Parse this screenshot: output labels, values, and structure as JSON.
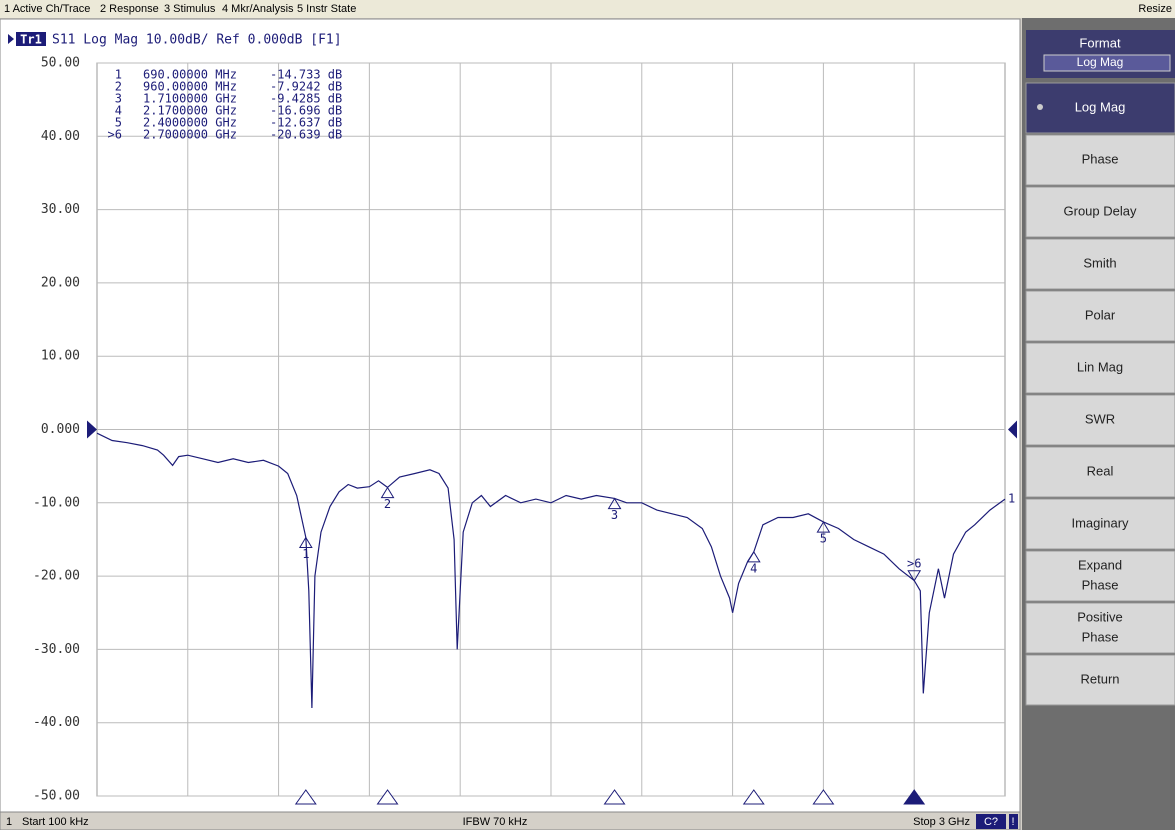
{
  "menu": [
    "1 Active Ch/Trace",
    "2 Response",
    "3 Stimulus",
    "4 Mkr/Analysis",
    "5 Instr State"
  ],
  "menu_right": "Resize",
  "trace_header": {
    "trace": "Tr1",
    "text": "S11 Log Mag 10.00dB/ Ref 0.000dB [F1]"
  },
  "chart_data": {
    "type": "line",
    "xlim": [
      0.0001,
      3
    ],
    "xgrid": [
      0.3,
      0.6,
      0.9,
      1.2,
      1.5,
      1.8,
      2.1,
      2.4,
      2.7
    ],
    "ylim": [
      -50,
      50
    ],
    "yticks": [
      {
        "value": 50,
        "label": "50.00"
      },
      {
        "value": 40,
        "label": "40.00"
      },
      {
        "value": 30,
        "label": "30.00"
      },
      {
        "value": 20,
        "label": "20.00"
      },
      {
        "value": 10,
        "label": "10.00"
      },
      {
        "value": 0,
        "label": "0.000"
      },
      {
        "value": -10,
        "label": "-10.00"
      },
      {
        "value": -20,
        "label": "-20.00"
      },
      {
        "value": -30,
        "label": "-30.00"
      },
      {
        "value": -40,
        "label": "-40.00"
      },
      {
        "value": -50,
        "label": "-50.00"
      }
    ],
    "grid": true,
    "ref_level": 0,
    "series": [
      {
        "color": "#1c1c78",
        "x": [
          0.0001,
          0.05,
          0.1,
          0.15,
          0.2,
          0.22,
          0.25,
          0.27,
          0.3,
          0.35,
          0.4,
          0.45,
          0.5,
          0.55,
          0.6,
          0.63,
          0.66,
          0.69,
          0.7,
          0.71,
          0.72,
          0.74,
          0.77,
          0.8,
          0.83,
          0.86,
          0.9,
          0.93,
          0.96,
          1.0,
          1.05,
          1.1,
          1.13,
          1.16,
          1.18,
          1.19,
          1.21,
          1.24,
          1.27,
          1.3,
          1.35,
          1.4,
          1.45,
          1.5,
          1.55,
          1.6,
          1.65,
          1.71,
          1.75,
          1.8,
          1.85,
          1.9,
          1.95,
          2.0,
          2.03,
          2.06,
          2.09,
          2.1,
          2.12,
          2.15,
          2.17,
          2.2,
          2.25,
          2.3,
          2.35,
          2.4,
          2.45,
          2.5,
          2.55,
          2.6,
          2.65,
          2.7,
          2.72,
          2.73,
          2.75,
          2.78,
          2.8,
          2.83,
          2.87,
          2.9,
          2.95,
          3.0
        ],
        "values": [
          -0.5,
          -1.5,
          -1.8,
          -2.2,
          -2.8,
          -3.5,
          -4.9,
          -3.7,
          -3.5,
          -4,
          -4.5,
          -4,
          -4.5,
          -4.2,
          -5,
          -6,
          -9,
          -14.7,
          -22,
          -38,
          -20,
          -14,
          -10.5,
          -8.5,
          -7.5,
          -8,
          -7.8,
          -7,
          -7.9,
          -6.5,
          -6,
          -5.5,
          -6,
          -8,
          -15,
          -30,
          -14,
          -10,
          -9,
          -10.5,
          -9,
          -10,
          -9.5,
          -10,
          -9,
          -9.5,
          -9,
          -9.4,
          -10,
          -10,
          -11,
          -11.5,
          -12,
          -13.5,
          -16,
          -20,
          -23,
          -25,
          -21,
          -18,
          -16.7,
          -13,
          -12,
          -12,
          -11.5,
          -12.6,
          -13.5,
          -15,
          -16,
          -17,
          -19,
          -20.6,
          -22,
          -36,
          -25,
          -19,
          -23,
          -17,
          -14,
          -13,
          -11,
          -9.5
        ]
      }
    ],
    "markers": [
      {
        "label": "1",
        "stimulus": "690.00000 MHz",
        "response": "-14.733 dB",
        "x": 0.69,
        "y": -14.733,
        "active": false
      },
      {
        "label": "2",
        "stimulus": "960.00000 MHz",
        "response": "-7.9242 dB",
        "x": 0.96,
        "y": -7.9242,
        "active": false
      },
      {
        "label": "3",
        "stimulus": "1.7100000 GHz",
        "response": "-9.4285 dB",
        "x": 1.71,
        "y": -9.4285,
        "active": false
      },
      {
        "label": "4",
        "stimulus": "2.1700000 GHz",
        "response": "-16.696 dB",
        "x": 2.17,
        "y": -16.696,
        "active": false
      },
      {
        "label": "5",
        "stimulus": "2.4000000 GHz",
        "response": "-12.637 dB",
        "x": 2.4,
        "y": -12.637,
        "active": false
      },
      {
        "label": ">6",
        "stimulus": "2.7000000 GHz",
        "response": "-20.639 dB",
        "x": 2.7,
        "y": -20.639,
        "active": true
      }
    ],
    "trace_end_label": "1"
  },
  "softkeys": {
    "title": "Format",
    "current": "Log Mag",
    "buttons": [
      [
        "Log Mag"
      ],
      [
        "Phase"
      ],
      [
        "Group Delay"
      ],
      [
        "Smith"
      ],
      [
        "Polar"
      ],
      [
        "Lin Mag"
      ],
      [
        "SWR"
      ],
      [
        "Real"
      ],
      [
        "Imaginary"
      ],
      [
        "Expand",
        "Phase"
      ],
      [
        "Positive",
        "Phase"
      ],
      [
        "Return"
      ]
    ]
  },
  "status": {
    "channel": "1",
    "start": "Start 100 kHz",
    "ifbw": "IFBW 70 kHz",
    "stop": "Stop 3 GHz",
    "cal": "C?",
    "warn": "!"
  }
}
